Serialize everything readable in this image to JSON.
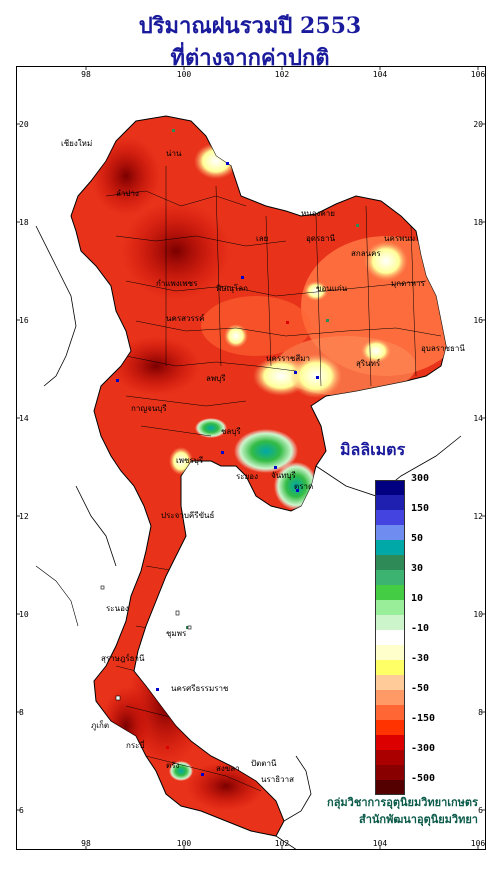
{
  "title_line1": "ปริมาณฝนรวมปี  2553",
  "title_line2": "ที่ต่างจากค่าปกติ",
  "legend": {
    "title": "มิลลิเมตร",
    "colors": [
      "#000080",
      "#2020b0",
      "#4444e0",
      "#6f8cf0",
      "#00a8a8",
      "#2e8b57",
      "#3cb371",
      "#44cc44",
      "#99ee99",
      "#ccf5cc",
      "#ffffff",
      "#ffffcc",
      "#ffff66",
      "#ffcc99",
      "#ff9966",
      "#ff6633",
      "#ff3300",
      "#dd0000",
      "#aa0000",
      "#880000",
      "#550000"
    ],
    "labels": [
      "300",
      "150",
      "50",
      "30",
      "10",
      "-10",
      "-30",
      "-50",
      "-150",
      "-300",
      "-500"
    ]
  },
  "axes": {
    "x_ticks": [
      "98",
      "100",
      "102",
      "104",
      "106"
    ],
    "y_ticks": [
      "20",
      "18",
      "16",
      "14",
      "12",
      "10",
      "8",
      "6"
    ]
  },
  "provinces": [
    "เชียงใหม่",
    "น่าน",
    "ลำปาง",
    "หนองคาย",
    "อุดรธานี",
    "นครพนม",
    "สกลนคร",
    "เลย",
    "มุกดาหาร",
    "ขอนแก่น",
    "พิษณุโลก",
    "กำแพงเพชร",
    "นครสวรรค์",
    "อุบลราชธานี",
    "นครราชสีมา",
    "สุรินทร์",
    "ลพบุรี",
    "กาญจนบุรี",
    "ชลบุรี",
    "ระยอง",
    "จันทบุรี",
    "ตราด",
    "เพชรบุรี",
    "ประจวบคีรีขันธ์",
    "ระนอง",
    "ชุมพร",
    "สุราษฎร์ธานี",
    "นครศรีธรรมราช",
    "ภูเก็ต",
    "กระบี่",
    "ตรัง",
    "สงขลา",
    "ปัตตานี",
    "นราธิวาส"
  ],
  "credit_line1": "กลุ่มวิชาการอุตุนิยมวิทยาเกษตร",
  "credit_line2": "สำนักพัฒนาอุตุนิยมวิทยา"
}
